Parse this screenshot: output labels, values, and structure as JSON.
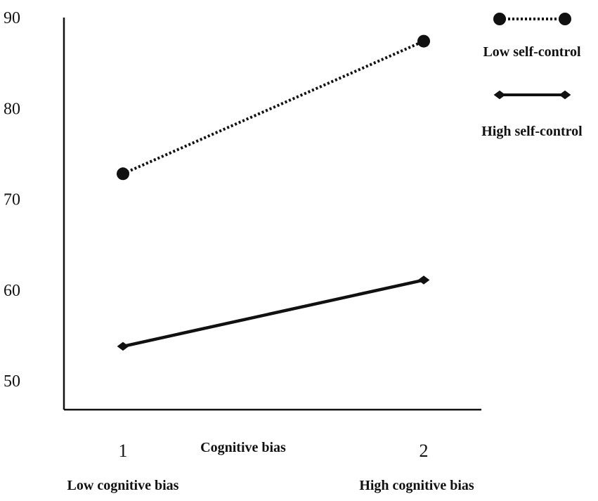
{
  "chart_data": {
    "type": "line",
    "title": "",
    "xlabel": "Cognitive bias",
    "ylabel": "",
    "x": [
      1,
      2
    ],
    "x_tick_labels": [
      "1",
      "2"
    ],
    "x_category_labels": [
      "Low cognitive bias",
      "High cognitive bias"
    ],
    "y_ticks": [
      50,
      60,
      70,
      80,
      90
    ],
    "ylim": [
      50,
      90
    ],
    "grid": false,
    "legend_position": "top-right",
    "series": [
      {
        "name": "Low self-control",
        "values": [
          72.8,
          87.4
        ],
        "marker": "circle",
        "line_style": "dotted",
        "color": "#111111"
      },
      {
        "name": "High self-control",
        "values": [
          53.8,
          61.1
        ],
        "marker": "diamond",
        "line_style": "solid",
        "color": "#111111"
      }
    ]
  }
}
